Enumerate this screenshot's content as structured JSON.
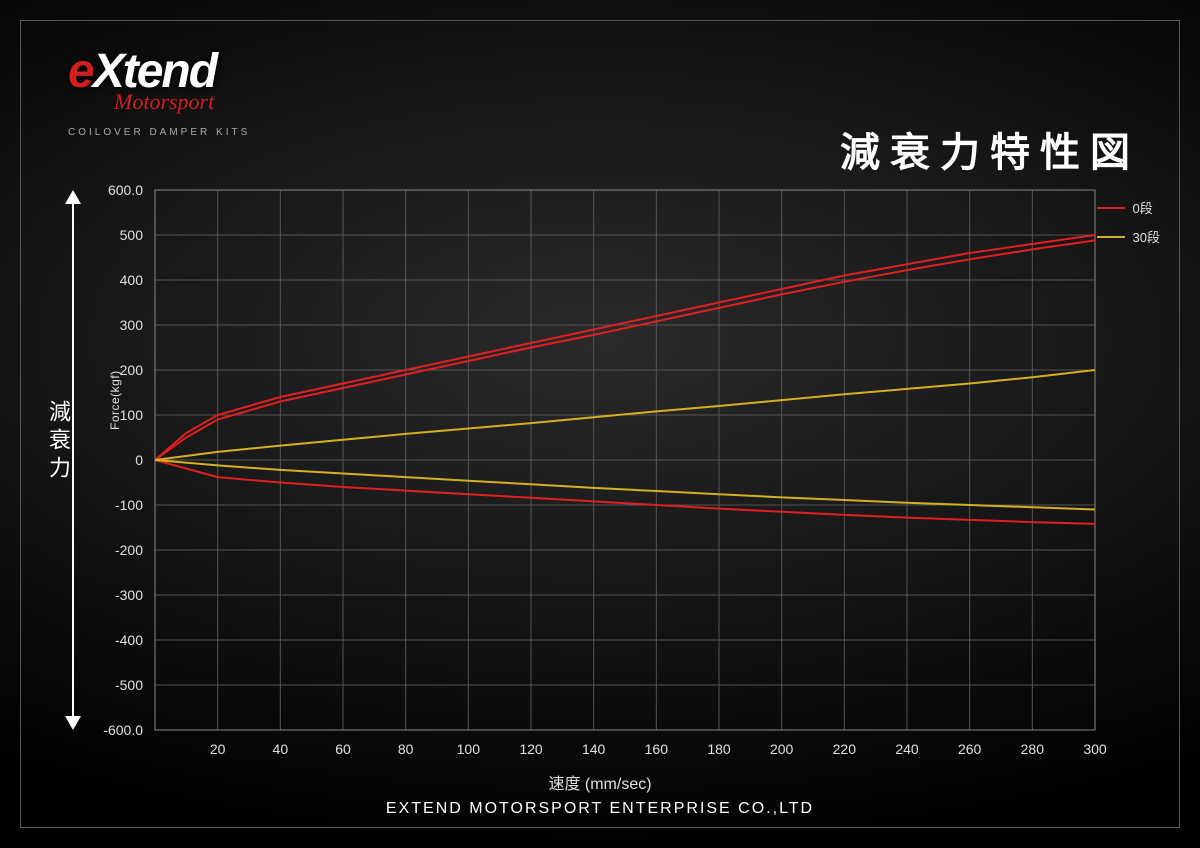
{
  "logo": {
    "brand_prefix": "e",
    "brand_rest": "Xtend",
    "subtitle": "Motorsport",
    "tagline": "COILOVER DAMPER KITS"
  },
  "title": "減衰力特性図",
  "footer": "EXTEND MOTORSPORT ENTERPRISE CO.,LTD",
  "y_axis_title": "減衰力",
  "y_axis_label": "Force(kgf)",
  "x_axis_label": "速度 (mm/sec)",
  "legend": {
    "items": [
      {
        "label": "0段",
        "color": "#e02020"
      },
      {
        "label": "30段",
        "color": "#d4b020"
      }
    ]
  },
  "chart": {
    "type": "line",
    "background_color": "transparent",
    "grid_color": "#555555",
    "axis_color": "#888888",
    "tick_color": "#e0e0e0",
    "tick_fontsize": 14,
    "title_fontsize": 40,
    "label_fontsize": 16,
    "line_width": 2,
    "xlim": [
      0,
      300
    ],
    "ylim": [
      -600,
      600
    ],
    "x_ticks": [
      20,
      40,
      60,
      80,
      100,
      120,
      140,
      160,
      180,
      200,
      220,
      240,
      260,
      280,
      300
    ],
    "y_ticks": [
      -600,
      -500,
      -400,
      -300,
      -200,
      -100,
      0,
      100,
      200,
      300,
      400,
      500,
      600
    ],
    "y_tick_labels": [
      "-600.0",
      "-500",
      "-400",
      "-300",
      "-200",
      "-100",
      "0",
      "100",
      "200",
      "300",
      "400",
      "500",
      "600.0"
    ],
    "series": [
      {
        "name": "0段_upper",
        "color": "#e02020",
        "x": [
          0,
          10,
          20,
          40,
          60,
          80,
          100,
          120,
          140,
          160,
          180,
          200,
          220,
          240,
          260,
          280,
          300
        ],
        "y": [
          0,
          60,
          100,
          140,
          170,
          200,
          230,
          260,
          290,
          320,
          350,
          380,
          410,
          435,
          460,
          480,
          500
        ]
      },
      {
        "name": "0段_upper_inner",
        "color": "#e02020",
        "x": [
          0,
          10,
          20,
          40,
          60,
          80,
          100,
          120,
          140,
          160,
          180,
          200,
          220,
          240,
          260,
          280,
          300
        ],
        "y": [
          0,
          50,
          90,
          130,
          160,
          190,
          220,
          250,
          278,
          308,
          338,
          368,
          396,
          422,
          446,
          468,
          488
        ]
      },
      {
        "name": "0段_lower",
        "color": "#e02020",
        "x": [
          0,
          20,
          40,
          60,
          80,
          100,
          120,
          140,
          160,
          180,
          200,
          220,
          240,
          260,
          280,
          300
        ],
        "y": [
          0,
          -38,
          -50,
          -60,
          -68,
          -76,
          -84,
          -92,
          -100,
          -108,
          -115,
          -122,
          -128,
          -133,
          -138,
          -142
        ]
      },
      {
        "name": "30段_upper",
        "color": "#d4b020",
        "x": [
          0,
          20,
          40,
          60,
          80,
          100,
          120,
          140,
          160,
          180,
          200,
          220,
          240,
          260,
          280,
          300
        ],
        "y": [
          0,
          18,
          32,
          45,
          58,
          70,
          82,
          95,
          108,
          120,
          133,
          146,
          158,
          170,
          184,
          200
        ]
      },
      {
        "name": "30段_lower",
        "color": "#d4b020",
        "x": [
          0,
          20,
          40,
          60,
          80,
          100,
          120,
          140,
          160,
          180,
          200,
          220,
          240,
          260,
          280,
          300
        ],
        "y": [
          0,
          -12,
          -22,
          -30,
          -38,
          -46,
          -54,
          -62,
          -69,
          -76,
          -83,
          -89,
          -95,
          -100,
          -105,
          -110
        ]
      }
    ]
  }
}
